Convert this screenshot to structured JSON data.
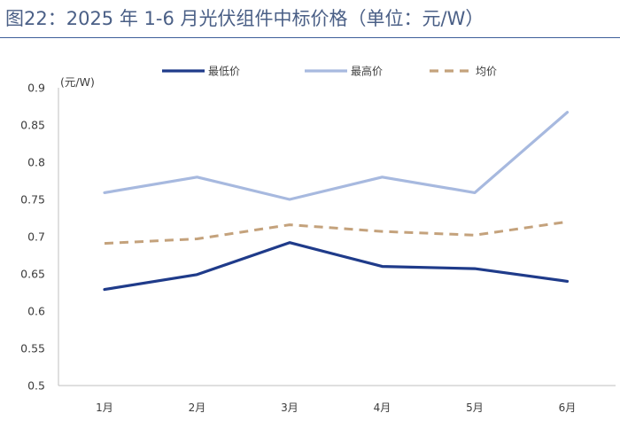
{
  "title": "图22：2025 年 1-6 月光伏组件中标价格（单位：元/W）",
  "colors": {
    "title": "#4a5f86",
    "title_rule": "#3e5f9a",
    "axis": "#bfbfbf",
    "min_line": "#1f3b8a",
    "max_line": "#a7b9df",
    "avg_line": "#c4a27c"
  },
  "chart_data": {
    "type": "line",
    "ylabel": "(元/W)",
    "categories": [
      "1月",
      "2月",
      "3月",
      "4月",
      "5月",
      "6月"
    ],
    "ylim": [
      0.5,
      0.9
    ],
    "yticks": [
      0.5,
      0.55,
      0.6,
      0.65,
      0.7,
      0.75,
      0.8,
      0.85,
      0.9
    ],
    "grid": false,
    "legend_position": "top",
    "series": [
      {
        "name": "最低价",
        "color": "#1f3b8a",
        "style": "solid",
        "values": [
          0.629,
          0.649,
          0.692,
          0.66,
          0.657,
          0.64
        ]
      },
      {
        "name": "最高价",
        "color": "#a7b9df",
        "style": "solid",
        "values": [
          0.759,
          0.78,
          0.75,
          0.78,
          0.759,
          0.867
        ]
      },
      {
        "name": "均价",
        "color": "#c4a27c",
        "style": "dashed",
        "values": [
          0.691,
          0.697,
          0.716,
          0.707,
          0.702,
          0.72
        ]
      }
    ]
  }
}
